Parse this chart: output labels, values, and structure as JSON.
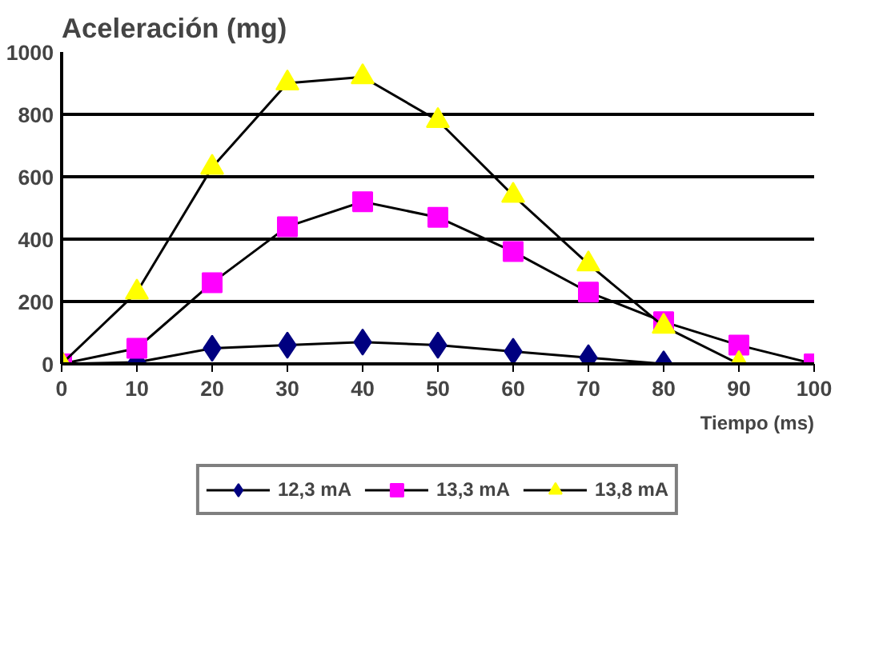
{
  "chart_data": {
    "type": "line",
    "title": "Aceleración (mg)",
    "xlabel": "Tiempo (ms)",
    "xlim": [
      0,
      100
    ],
    "xticks": [
      0,
      10,
      20,
      30,
      40,
      50,
      60,
      70,
      80,
      90,
      100
    ],
    "ylim": [
      0,
      1000
    ],
    "yticks": [
      0,
      200,
      400,
      600,
      800,
      1000
    ],
    "grid": "y",
    "legend": "bottom",
    "series": [
      {
        "name": "12,3 mA",
        "color": "#000080",
        "marker": "diamond",
        "x": [
          0,
          10,
          20,
          30,
          40,
          50,
          60,
          70,
          80
        ],
        "values": [
          0,
          5,
          50,
          60,
          70,
          60,
          40,
          20,
          0
        ]
      },
      {
        "name": "13,3 mA",
        "color": "#ff00ff",
        "marker": "square",
        "x": [
          0,
          10,
          20,
          30,
          40,
          50,
          60,
          70,
          80,
          90,
          100
        ],
        "values": [
          0,
          50,
          260,
          440,
          520,
          470,
          360,
          230,
          135,
          60,
          0
        ]
      },
      {
        "name": "13,8 mA",
        "color": "#ffff00",
        "marker": "triangle",
        "x": [
          0,
          10,
          20,
          30,
          40,
          50,
          60,
          70,
          80,
          90
        ],
        "values": [
          0,
          230,
          630,
          900,
          920,
          780,
          540,
          320,
          120,
          0
        ]
      }
    ]
  }
}
